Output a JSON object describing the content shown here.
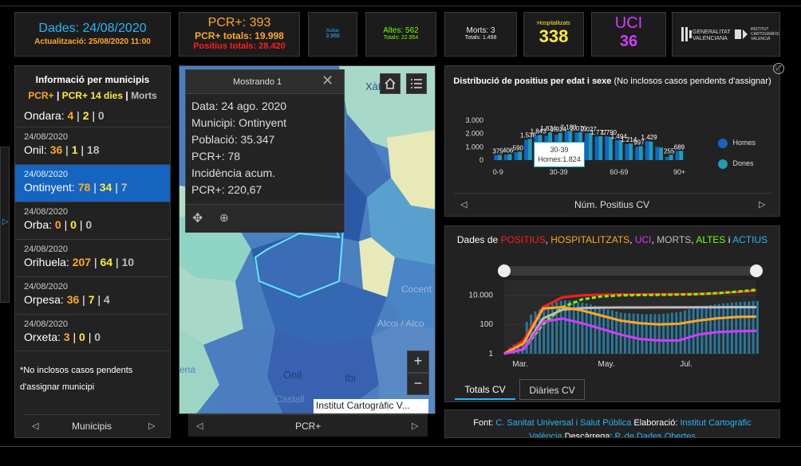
{
  "header": {
    "dades_date": "Dades: 24/08/2020",
    "actualitzacio": "Actualització: 25/08/2020 11:00",
    "pcr_title": "PCR+: 393",
    "pcr_totals": "PCR+ totals: 19.998",
    "positius_totals": "Positius totals: 28.420",
    "actius_label": "Actius",
    "actius_value": "3.968",
    "altes_label": "Altes: 562",
    "altes_totals": "Totals: 22.954",
    "morts_label": "Morts: 3",
    "morts_totals": "Totals: 1.498",
    "hosp_label": "Hospitalitzats",
    "hosp_value": "338",
    "uci_label": "UCI",
    "uci_value": "36",
    "logo1_line1": "GENERALITAT",
    "logo1_line2": "VALENCIANA",
    "logo2_line1": "INSTITUT",
    "logo2_line2": "CARTOGRÀFIC",
    "logo2_line3": "VALENCIÀ"
  },
  "municipis": {
    "title": "Informació per municipis",
    "legend_pcr": "PCR+",
    "legend_14": "PCR+ 14 dies",
    "legend_morts": "Morts",
    "sep": "|",
    "first": {
      "name": "Ondara:",
      "pcr": "4",
      "d14": "2",
      "morts": "0"
    },
    "items": [
      {
        "date": "24/08/2020",
        "name": "Onil:",
        "pcr": "36",
        "d14": "1",
        "morts": "18"
      },
      {
        "date": "24/08/2020",
        "name": "Ontinyent:",
        "pcr": "78",
        "d14": "34",
        "morts": "7"
      },
      {
        "date": "24/08/2020",
        "name": "Orba:",
        "pcr": "0",
        "d14": "0",
        "morts": "0"
      },
      {
        "date": "24/08/2020",
        "name": "Orihuela:",
        "pcr": "207",
        "d14": "64",
        "morts": "10"
      },
      {
        "date": "24/08/2020",
        "name": "Orpesa:",
        "pcr": "36",
        "d14": "7",
        "morts": "4"
      },
      {
        "date": "24/08/2020",
        "name": "Orxeta:",
        "pcr": "3",
        "d14": "0",
        "morts": "0"
      }
    ],
    "note_line1": "*No inclosos casos pendents",
    "note_line2": "d'assignar municipi",
    "nav_label": "Municipis"
  },
  "map": {
    "popup_title": "Mostrando 1",
    "popup_lines": [
      "Data: 24 ago. 2020",
      "Municipi: Ontinyent",
      "Població: 35.347",
      "PCR+: 78",
      "Incidència acum.",
      "PCR+: 220,67"
    ],
    "labels": [
      "Xàtiva",
      "Cocent",
      "Alcoi / Alco",
      "Onil",
      "Ibi",
      "Castall",
      "ena"
    ],
    "attribution": "Institut Cartogràfic V...",
    "nav_label": "PCR+",
    "zoom_in": "+",
    "zoom_out": "−"
  },
  "age_chart": {
    "title_bold": "Distribució de positius per edat i sexe",
    "title_rest": " (No inclosos casos pendents d'assignar)",
    "nav_label": "Núm. Positius CV",
    "tooltip_line1": "30-39",
    "tooltip_line2": "Homes:1.824",
    "legend_homes": "Homes",
    "legend_dones": "Dones",
    "color_homes": "#1565c0",
    "color_dones": "#1e9bb8"
  },
  "chart_data": [
    {
      "type": "bar",
      "yticks": [
        "3.000",
        "2.000",
        "1.000",
        "0"
      ],
      "xticks": [
        "0-9",
        "30-39",
        "60-69",
        "90+"
      ],
      "ylim": [
        0,
        3000
      ],
      "categories": [
        "0-4",
        "5-9",
        "10-14",
        "15-19",
        "20-24",
        "25-29",
        "30-34",
        "35-39",
        "40-44",
        "45-49",
        "50-54",
        "55-59",
        "60-64",
        "65-69",
        "70-74",
        "75-79",
        "80-84",
        "85-89",
        "90+"
      ],
      "series": [
        {
          "name": "Homes",
          "values": [
            375,
            406,
            590,
            1536,
            1843,
            1824,
            1924,
            2183,
            2076,
            2027,
            1777,
            1790,
            1494,
            1214,
            997,
            1429,
            1000,
            255,
            689
          ]
        },
        {
          "name": "Dones",
          "values": [
            400,
            450,
            640,
            1600,
            1900,
            2100,
            2050,
            2200,
            2100,
            2050,
            1800,
            1750,
            1500,
            1250,
            1050,
            1400,
            950,
            400,
            700
          ]
        }
      ],
      "data_labels": [
        "375",
        "406",
        "590",
        "1.536",
        "1.843",
        "1.824",
        "1.924",
        "2.183",
        "2.076",
        "2.027",
        "1.777",
        "1.790",
        "1.494",
        "1.214",
        "997",
        "1.429",
        "",
        "255",
        "689"
      ]
    },
    {
      "type": "line",
      "title_parts": [
        "Dades de ",
        "POSITIUS",
        ", ",
        "HOSPITALITZATS",
        ", ",
        "UCI",
        ", ",
        "MORTS",
        ", ",
        "ALTES",
        " i ",
        "ACTIUS"
      ],
      "title_colors": [
        "#ffffff",
        "#ff1e1e",
        "#ffffff",
        "#ffa726",
        "#ffffff",
        "#d33cff",
        "#ffffff",
        "#bdbdbd",
        "#ffffff",
        "#76ff03",
        "#ffffff",
        "#29b6f6"
      ],
      "yticks": [
        "10.000",
        "100",
        "1"
      ],
      "yscale": "log",
      "xticks": [
        "Mar.",
        "May.",
        "Jul."
      ],
      "series": [
        {
          "name": "POSITIUS",
          "color": "#ff1e1e",
          "values": [
            1,
            8,
            1500,
            7000,
            9500,
            10500,
            11000,
            11200,
            11400,
            11600,
            12000,
            13500,
            16000,
            19998
          ]
        },
        {
          "name": "ALTES",
          "color": "#76ff03",
          "values": [
            1,
            2,
            100,
            1500,
            5000,
            8000,
            9500,
            10000,
            10300,
            10700,
            11500,
            13500,
            17000,
            22954
          ]
        },
        {
          "name": "MORTS",
          "color": "#bdbdbd",
          "values": [
            1,
            2,
            250,
            1000,
            1300,
            1400,
            1420,
            1430,
            1440,
            1450,
            1460,
            1470,
            1485,
            1498
          ]
        },
        {
          "name": "HOSPITALITZATS",
          "color": "#ffa726",
          "values": [
            1,
            5,
            1200,
            1500,
            900,
            400,
            180,
            120,
            100,
            110,
            180,
            260,
            320,
            338
          ]
        },
        {
          "name": "UCI",
          "color": "#d33cff",
          "values": [
            1,
            2,
            150,
            250,
            120,
            50,
            20,
            10,
            8,
            8,
            20,
            30,
            34,
            36
          ]
        },
        {
          "name": "ACTIUS",
          "color": "#29b6f6",
          "values": [
            1,
            8,
            1400,
            4500,
            3000,
            1200,
            600,
            500,
            500,
            700,
            1500,
            2500,
            3300,
            3968
          ]
        }
      ]
    }
  ],
  "tabs": {
    "totals": "Totals CV",
    "diaries": "Diàries CV"
  },
  "footer": {
    "font_label": "Font: ",
    "font_link": "C. Sanitat Universal i Salut Pública",
    "elab_label": " Elaboració: ",
    "elab_link": "Institut Cartogràfic",
    "line2_link": "València",
    "desc_label": " Descàrrega: ",
    "desc_link": "P. de Dades Obertes"
  }
}
